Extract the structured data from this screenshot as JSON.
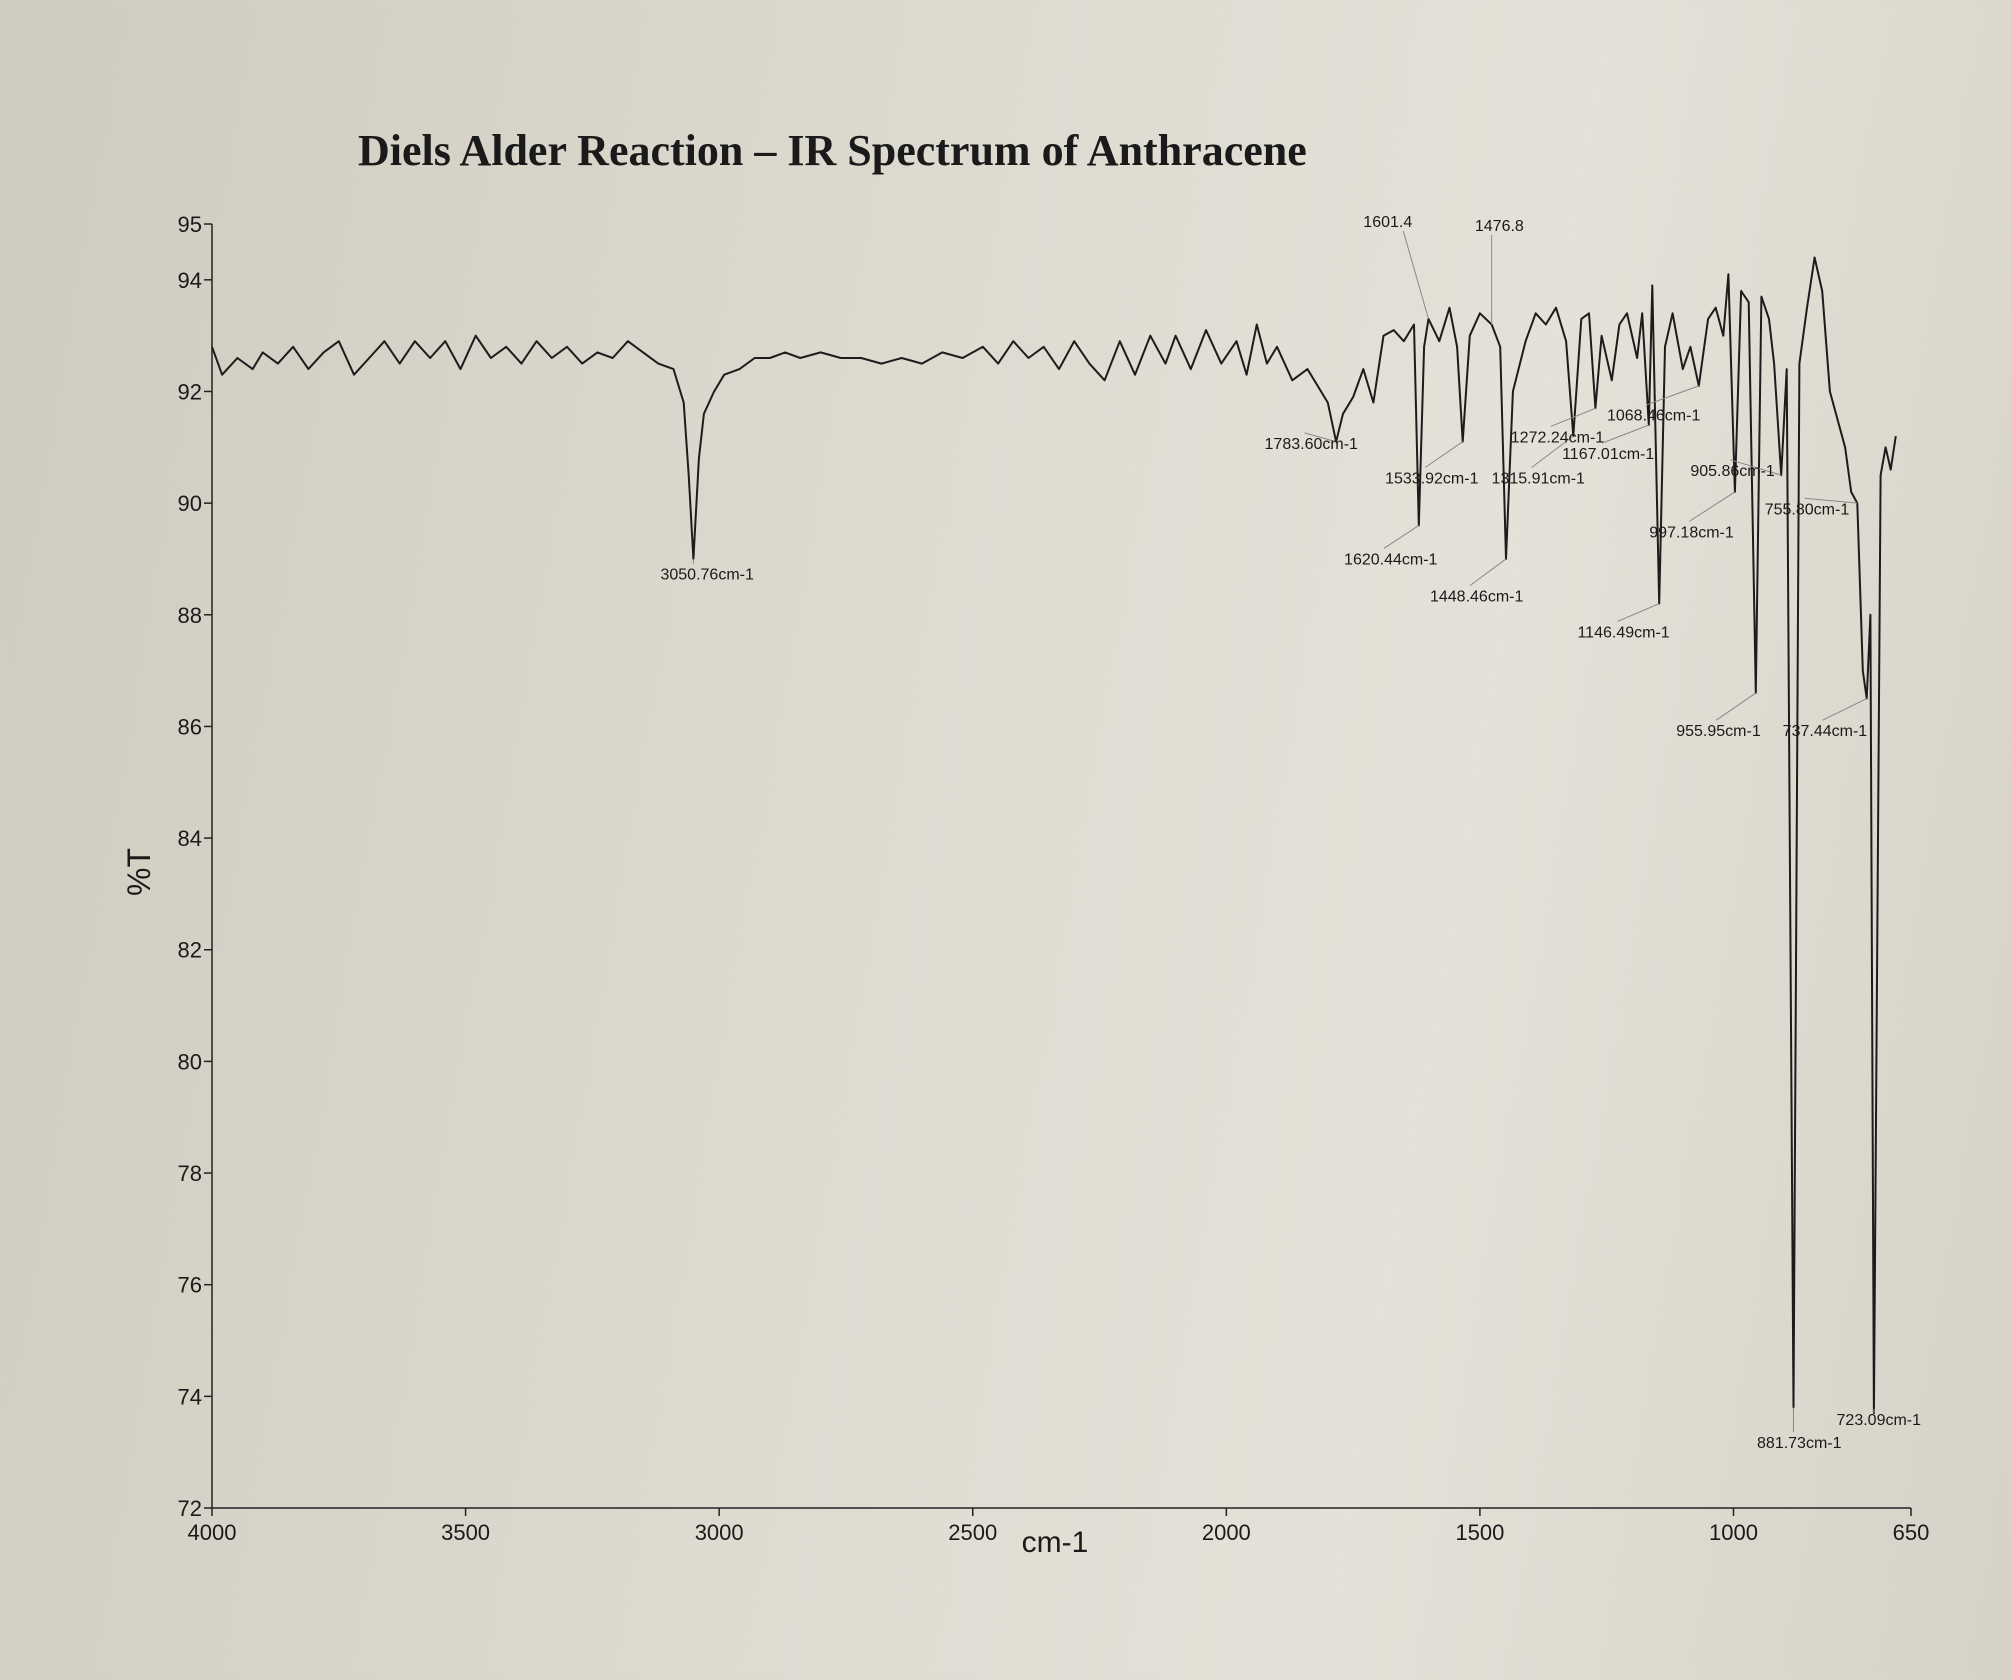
{
  "chart_data": {
    "type": "line",
    "title": "Diels Alder Reaction – IR Spectrum of Anthracene",
    "x_label": "cm-1",
    "y_label": "%T",
    "color": "#1c1c1c",
    "xlim": [
      4000,
      650
    ],
    "ylim": [
      72,
      95
    ],
    "xticks": [
      4000,
      3500,
      3000,
      2500,
      2000,
      1500,
      1000,
      650
    ],
    "yticks": [
      72,
      74,
      76,
      78,
      80,
      82,
      84,
      86,
      88,
      90,
      92,
      94,
      95
    ],
    "x": [
      4000,
      3980,
      3950,
      3920,
      3900,
      3870,
      3840,
      3810,
      3780,
      3750,
      3720,
      3690,
      3660,
      3630,
      3600,
      3570,
      3540,
      3510,
      3480,
      3450,
      3420,
      3390,
      3360,
      3330,
      3300,
      3270,
      3240,
      3210,
      3180,
      3150,
      3120,
      3090,
      3070,
      3060,
      3050.76,
      3040,
      3030,
      3010,
      2990,
      2960,
      2930,
      2900,
      2870,
      2840,
      2800,
      2760,
      2720,
      2680,
      2640,
      2600,
      2560,
      2520,
      2480,
      2450,
      2420,
      2390,
      2360,
      2330,
      2300,
      2270,
      2240,
      2210,
      2180,
      2150,
      2120,
      2100,
      2070,
      2040,
      2010,
      1980,
      1960,
      1940,
      1920,
      1900,
      1870,
      1840,
      1800,
      1783.6,
      1770,
      1750,
      1730,
      1710,
      1690,
      1670,
      1650,
      1630,
      1620.44,
      1610,
      1601.4,
      1580,
      1560,
      1545,
      1533.92,
      1520,
      1500,
      1476.8,
      1460,
      1448.46,
      1435,
      1410,
      1390,
      1370,
      1350,
      1330,
      1315.91,
      1300,
      1285,
      1272.24,
      1260,
      1240,
      1225,
      1210,
      1190,
      1180,
      1167.01,
      1160,
      1146.49,
      1135,
      1120,
      1100,
      1085,
      1068.46,
      1050,
      1035,
      1020,
      1010,
      997.18,
      985,
      970,
      955.95,
      945,
      930,
      920,
      905.86,
      895,
      881.73,
      870,
      855,
      840,
      825,
      810,
      795,
      780,
      768,
      755.8,
      745,
      737.44,
      730,
      723.09,
      710,
      700,
      690,
      680
    ],
    "values": [
      92.8,
      92.3,
      92.6,
      92.4,
      92.7,
      92.5,
      92.8,
      92.4,
      92.7,
      92.9,
      92.3,
      92.6,
      92.9,
      92.5,
      92.9,
      92.6,
      92.9,
      92.4,
      93.0,
      92.6,
      92.8,
      92.5,
      92.9,
      92.6,
      92.8,
      92.5,
      92.7,
      92.6,
      92.9,
      92.7,
      92.5,
      92.4,
      91.8,
      90.5,
      89.0,
      90.8,
      91.6,
      92.0,
      92.3,
      92.4,
      92.6,
      92.6,
      92.7,
      92.6,
      92.7,
      92.6,
      92.6,
      92.5,
      92.6,
      92.5,
      92.7,
      92.6,
      92.8,
      92.5,
      92.9,
      92.6,
      92.8,
      92.4,
      92.9,
      92.5,
      92.2,
      92.9,
      92.3,
      93.0,
      92.5,
      93.0,
      92.4,
      93.1,
      92.5,
      92.9,
      92.3,
      93.2,
      92.5,
      92.8,
      92.2,
      92.4,
      91.8,
      91.1,
      91.6,
      91.9,
      92.4,
      91.8,
      93.0,
      93.1,
      92.9,
      93.2,
      89.6,
      92.8,
      93.3,
      92.9,
      93.5,
      92.8,
      91.1,
      93.0,
      93.4,
      93.2,
      92.8,
      89.0,
      92.0,
      92.9,
      93.4,
      93.2,
      93.5,
      92.9,
      91.2,
      93.3,
      93.4,
      91.7,
      93.0,
      92.2,
      93.2,
      93.4,
      92.6,
      93.4,
      91.4,
      93.9,
      88.2,
      92.8,
      93.4,
      92.4,
      92.8,
      92.1,
      93.3,
      93.5,
      93.0,
      94.1,
      90.2,
      93.8,
      93.6,
      86.6,
      93.7,
      93.3,
      92.5,
      90.5,
      92.4,
      73.8,
      92.5,
      93.5,
      94.4,
      93.8,
      92.0,
      91.5,
      91.0,
      90.2,
      90.0,
      87.0,
      86.5,
      88.0,
      73.7,
      90.5,
      91.0,
      90.6,
      91.2
    ],
    "annotations": [
      {
        "text": "3050.76cm-1",
        "x": 3050.76,
        "y": 89.0
      },
      {
        "text": "1783.60cm-1",
        "x": 1783.6,
        "y": 91.1
      },
      {
        "text": "1620.44cm-1",
        "x": 1620.44,
        "y": 89.6
      },
      {
        "text": "1601.4",
        "x": 1601.4,
        "y": 93.3
      },
      {
        "text": "1476.8",
        "x": 1476.8,
        "y": 93.2
      },
      {
        "text": "1533.92cm-1",
        "x": 1533.92,
        "y": 91.1
      },
      {
        "text": "1315.91cm-1",
        "x": 1315.91,
        "y": 91.2
      },
      {
        "text": "1448.46cm-1",
        "x": 1448.46,
        "y": 89.0
      },
      {
        "text": "1272.24cm-1",
        "x": 1272.24,
        "y": 91.7
      },
      {
        "text": "1167.01cm-1",
        "x": 1167.01,
        "y": 91.4
      },
      {
        "text": "1146.49cm-1",
        "x": 1146.49,
        "y": 88.2
      },
      {
        "text": "1068.46cm-1",
        "x": 1068.46,
        "y": 92.1
      },
      {
        "text": "997.18cm-1",
        "x": 997.18,
        "y": 90.2
      },
      {
        "text": "955.95cm-1",
        "x": 955.95,
        "y": 86.6
      },
      {
        "text": "905.86cm-1",
        "x": 905.86,
        "y": 90.5
      },
      {
        "text": "881.73cm-1",
        "x": 881.73,
        "y": 73.8
      },
      {
        "text": "755.80cm-1",
        "x": 755.8,
        "y": 90.0
      },
      {
        "text": "737.44cm-1",
        "x": 737.44,
        "y": 86.5
      },
      {
        "text": "723.09cm-1",
        "x": 723.09,
        "y": 73.7
      }
    ]
  }
}
